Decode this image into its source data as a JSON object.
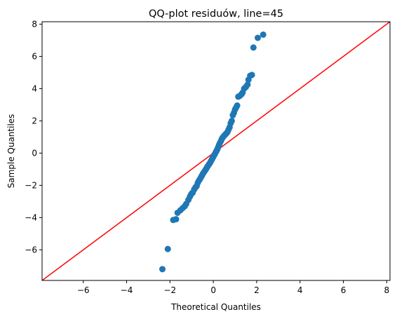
{
  "chart_data": {
    "type": "scatter",
    "title": "QQ-plot residuów, line=45",
    "xlabel": "Theoretical Quantiles",
    "ylabel": "Sample Quantiles",
    "xlim": [
      -7.9,
      8.15
    ],
    "ylim": [
      -7.9,
      8.15
    ],
    "xticks": [
      -6,
      -4,
      -2,
      0,
      2,
      4,
      6,
      8
    ],
    "yticks": [
      -6,
      -4,
      -2,
      0,
      2,
      4,
      6,
      8
    ],
    "xtick_labels": [
      "−6",
      "−4",
      "−2",
      "0",
      "2",
      "4",
      "6",
      "8"
    ],
    "ytick_labels": [
      "−6",
      "−4",
      "−2",
      "0",
      "2",
      "4",
      "6",
      "8"
    ],
    "grid": false,
    "reference_line": {
      "slope": 1,
      "intercept": 0,
      "color": "#ff0000"
    },
    "point_color": "#1f77b4",
    "points": [
      [
        -2.35,
        -7.2
      ],
      [
        -2.1,
        -5.95
      ],
      [
        -1.85,
        -4.15
      ],
      [
        -1.72,
        -4.1
      ],
      [
        -1.65,
        -3.7
      ],
      [
        -1.52,
        -3.55
      ],
      [
        -1.42,
        -3.42
      ],
      [
        -1.32,
        -3.3
      ],
      [
        -1.25,
        -3.15
      ],
      [
        -1.15,
        -2.9
      ],
      [
        -1.08,
        -2.7
      ],
      [
        -1.02,
        -2.55
      ],
      [
        -0.98,
        -2.48
      ],
      [
        -0.95,
        -2.45
      ],
      [
        -0.88,
        -2.25
      ],
      [
        -0.82,
        -2.12
      ],
      [
        -0.77,
        -2.05
      ],
      [
        -0.72,
        -1.85
      ],
      [
        -0.67,
        -1.72
      ],
      [
        -0.62,
        -1.62
      ],
      [
        -0.57,
        -1.5
      ],
      [
        -0.52,
        -1.38
      ],
      [
        -0.48,
        -1.28
      ],
      [
        -0.43,
        -1.18
      ],
      [
        -0.38,
        -1.08
      ],
      [
        -0.33,
        -0.98
      ],
      [
        -0.29,
        -0.88
      ],
      [
        -0.24,
        -0.78
      ],
      [
        -0.2,
        -0.7
      ],
      [
        -0.15,
        -0.6
      ],
      [
        -0.11,
        -0.5
      ],
      [
        -0.07,
        -0.4
      ],
      [
        -0.03,
        -0.3
      ],
      [
        0.02,
        -0.18
      ],
      [
        0.06,
        -0.08
      ],
      [
        0.1,
        0.02
      ],
      [
        0.14,
        0.12
      ],
      [
        0.18,
        0.22
      ],
      [
        0.22,
        0.35
      ],
      [
        0.26,
        0.5
      ],
      [
        0.3,
        0.62
      ],
      [
        0.35,
        0.75
      ],
      [
        0.4,
        0.9
      ],
      [
        0.45,
        1.0
      ],
      [
        0.5,
        1.08
      ],
      [
        0.55,
        1.15
      ],
      [
        0.6,
        1.22
      ],
      [
        0.65,
        1.3
      ],
      [
        0.7,
        1.45
      ],
      [
        0.75,
        1.6
      ],
      [
        0.8,
        1.85
      ],
      [
        0.85,
        2.0
      ],
      [
        0.9,
        2.35
      ],
      [
        0.95,
        2.5
      ],
      [
        1.0,
        2.7
      ],
      [
        1.05,
        2.82
      ],
      [
        1.1,
        2.95
      ],
      [
        1.15,
        3.5
      ],
      [
        1.22,
        3.55
      ],
      [
        1.3,
        3.65
      ],
      [
        1.35,
        3.75
      ],
      [
        1.42,
        4.0
      ],
      [
        1.5,
        4.1
      ],
      [
        1.58,
        4.25
      ],
      [
        1.62,
        4.55
      ],
      [
        1.7,
        4.8
      ],
      [
        1.78,
        4.85
      ],
      [
        1.85,
        6.55
      ],
      [
        2.05,
        7.15
      ],
      [
        2.3,
        7.35
      ]
    ]
  }
}
